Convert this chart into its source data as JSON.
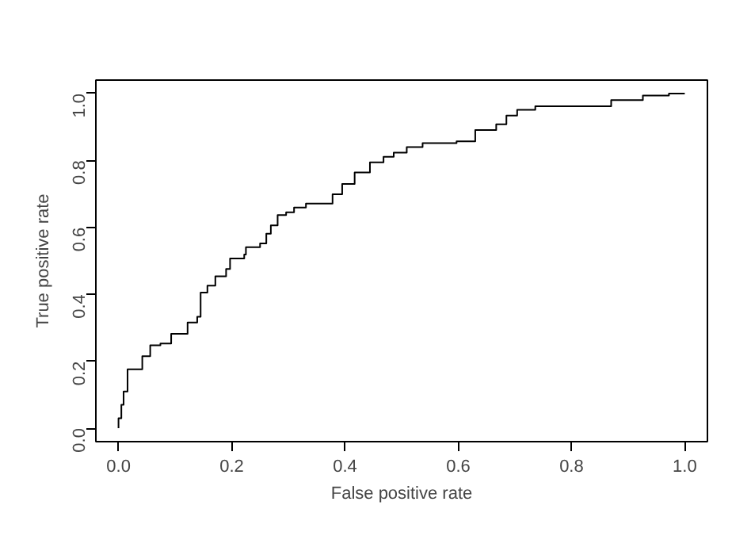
{
  "chart_data": {
    "type": "step",
    "xlabel": "False positive rate",
    "ylabel": "True positive rate",
    "x": [
      0,
      0,
      0.005,
      0.009,
      0.016,
      0.032,
      0.042,
      0.056,
      0.074,
      0.093,
      0.119,
      0.122,
      0.139,
      0.145,
      0.157,
      0.171,
      0.19,
      0.197,
      0.222,
      0.225,
      0.25,
      0.261,
      0.269,
      0.281,
      0.296,
      0.31,
      0.331,
      0.368,
      0.378,
      0.395,
      0.417,
      0.444,
      0.468,
      0.486,
      0.509,
      0.537,
      0.597,
      0.63,
      0.667,
      0.685,
      0.704,
      0.736,
      0.843,
      0.87,
      0.926,
      0.972,
      1.0
    ],
    "series": [
      {
        "color": "#000000",
        "values": [
          0,
          0.03,
          0.07,
          0.11,
          0.176,
          0.176,
          0.215,
          0.248,
          0.253,
          0.282,
          0.282,
          0.316,
          0.333,
          0.405,
          0.426,
          0.454,
          0.476,
          0.507,
          0.519,
          0.541,
          0.552,
          0.581,
          0.606,
          0.637,
          0.645,
          0.659,
          0.671,
          0.671,
          0.699,
          0.73,
          0.764,
          0.794,
          0.811,
          0.823,
          0.84,
          0.852,
          0.857,
          0.891,
          0.908,
          0.934,
          0.951,
          0.962,
          0.962,
          0.98,
          0.994,
          1.0,
          1.0
        ]
      }
    ],
    "xlim": [
      -0.04,
      1.04
    ],
    "ylim": [
      -0.04,
      1.04
    ],
    "xticks": [
      {
        "value": 0,
        "label": "0.0"
      },
      0.2,
      0.4,
      0.6,
      0.8,
      {
        "value": 1,
        "label": "1.0"
      }
    ],
    "yticks": [
      {
        "value": 0,
        "label": "0.0"
      },
      0.2,
      0.4,
      0.6,
      0.8,
      {
        "value": 1,
        "label": "1.0"
      }
    ],
    "grid": false,
    "line_style": "solid"
  }
}
